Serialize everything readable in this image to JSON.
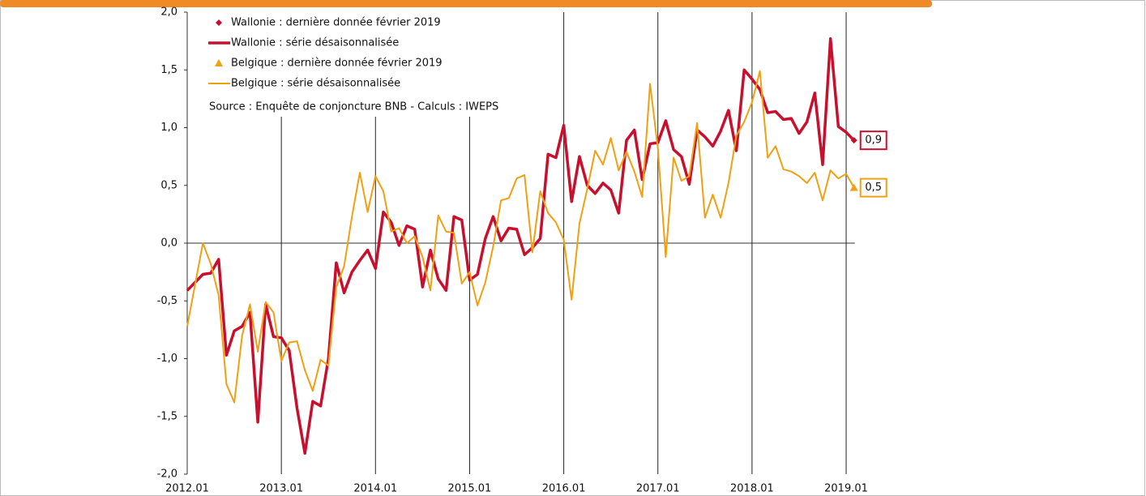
{
  "chart_data": {
    "type": "line",
    "categories": [
      "2012.01",
      null,
      null,
      null,
      null,
      null,
      null,
      null,
      null,
      null,
      null,
      null,
      "2013.01",
      null,
      null,
      null,
      null,
      null,
      null,
      null,
      null,
      null,
      null,
      null,
      "2014.01",
      null,
      null,
      null,
      null,
      null,
      null,
      null,
      null,
      null,
      null,
      null,
      "2015.01",
      null,
      null,
      null,
      null,
      null,
      null,
      null,
      null,
      null,
      null,
      null,
      "2016.01",
      null,
      null,
      null,
      null,
      null,
      null,
      null,
      null,
      null,
      null,
      null,
      "2017.01",
      null,
      null,
      null,
      null,
      null,
      null,
      null,
      null,
      null,
      null,
      null,
      "2018.01",
      null,
      null,
      null,
      null,
      null,
      null,
      null,
      null,
      null,
      null,
      null,
      "2019.01",
      null
    ],
    "series": [
      {
        "name": "Wallonie : dernière donnée février 2019",
        "color": "#c8102e",
        "marker": "diamond",
        "values": [
          null,
          null,
          null,
          null,
          null,
          null,
          null,
          null,
          null,
          null,
          null,
          null,
          null,
          null,
          null,
          null,
          null,
          null,
          null,
          null,
          null,
          null,
          null,
          null,
          null,
          null,
          null,
          null,
          null,
          null,
          null,
          null,
          null,
          null,
          null,
          null,
          null,
          null,
          null,
          null,
          null,
          null,
          null,
          null,
          null,
          null,
          null,
          null,
          null,
          null,
          null,
          null,
          null,
          null,
          null,
          null,
          null,
          null,
          null,
          null,
          null,
          null,
          null,
          null,
          null,
          null,
          null,
          null,
          null,
          null,
          null,
          null,
          null,
          null,
          null,
          null,
          null,
          null,
          null,
          null,
          null,
          null,
          null,
          null,
          null,
          0.89
        ],
        "value_labels": [
          null,
          null,
          null,
          null,
          null,
          null,
          null,
          null,
          null,
          null,
          null,
          null,
          null,
          null,
          null,
          null,
          null,
          null,
          null,
          null,
          null,
          null,
          null,
          null,
          null,
          null,
          null,
          null,
          null,
          null,
          null,
          null,
          null,
          null,
          null,
          null,
          null,
          null,
          null,
          null,
          null,
          null,
          null,
          null,
          null,
          null,
          null,
          null,
          null,
          null,
          null,
          null,
          null,
          null,
          null,
          null,
          null,
          null,
          null,
          null,
          null,
          null,
          null,
          null,
          null,
          null,
          null,
          null,
          null,
          null,
          null,
          null,
          null,
          null,
          null,
          null,
          null,
          null,
          null,
          null,
          null,
          null,
          null,
          null,
          null,
          "0,9"
        ]
      },
      {
        "name": "Wallonie : série désaisonnalisée",
        "color": "#c8102e",
        "line_width": 3.5,
        "values": [
          -0.41,
          -0.34,
          -0.27,
          -0.26,
          -0.14,
          -0.97,
          -0.76,
          -0.72,
          -0.6,
          -1.55,
          -0.53,
          -0.81,
          -0.82,
          -0.93,
          -1.43,
          -1.82,
          -1.37,
          -1.41,
          -1.0,
          -0.17,
          -0.43,
          -0.25,
          -0.15,
          -0.06,
          -0.22,
          0.27,
          0.18,
          -0.02,
          0.15,
          0.12,
          -0.38,
          -0.06,
          -0.31,
          -0.41,
          0.23,
          0.2,
          -0.32,
          -0.27,
          0.04,
          0.23,
          0.02,
          0.13,
          0.12,
          -0.1,
          -0.04,
          0.04,
          0.77,
          0.74,
          1.02,
          0.36,
          0.75,
          0.5,
          0.43,
          0.52,
          0.46,
          0.26,
          0.89,
          0.98,
          0.55,
          0.86,
          0.87,
          1.06,
          0.81,
          0.75,
          0.51,
          0.98,
          0.92,
          0.84,
          0.97,
          1.15,
          0.8,
          1.5,
          1.42,
          1.33,
          1.13,
          1.14,
          1.07,
          1.08,
          0.95,
          1.05,
          1.3,
          0.68,
          1.77,
          1.01,
          0.96,
          0.89
        ]
      },
      {
        "name": "Belgique : dernière donnée février 2019",
        "color": "#f0a013",
        "marker": "triangle",
        "values": [
          null,
          null,
          null,
          null,
          null,
          null,
          null,
          null,
          null,
          null,
          null,
          null,
          null,
          null,
          null,
          null,
          null,
          null,
          null,
          null,
          null,
          null,
          null,
          null,
          null,
          null,
          null,
          null,
          null,
          null,
          null,
          null,
          null,
          null,
          null,
          null,
          null,
          null,
          null,
          null,
          null,
          null,
          null,
          null,
          null,
          null,
          null,
          null,
          null,
          null,
          null,
          null,
          null,
          null,
          null,
          null,
          null,
          null,
          null,
          null,
          null,
          null,
          null,
          null,
          null,
          null,
          null,
          null,
          null,
          null,
          null,
          null,
          null,
          null,
          null,
          null,
          null,
          null,
          null,
          null,
          null,
          null,
          null,
          null,
          null,
          0.48
        ],
        "value_labels": [
          null,
          null,
          null,
          null,
          null,
          null,
          null,
          null,
          null,
          null,
          null,
          null,
          null,
          null,
          null,
          null,
          null,
          null,
          null,
          null,
          null,
          null,
          null,
          null,
          null,
          null,
          null,
          null,
          null,
          null,
          null,
          null,
          null,
          null,
          null,
          null,
          null,
          null,
          null,
          null,
          null,
          null,
          null,
          null,
          null,
          null,
          null,
          null,
          null,
          null,
          null,
          null,
          null,
          null,
          null,
          null,
          null,
          null,
          null,
          null,
          null,
          null,
          null,
          null,
          null,
          null,
          null,
          null,
          null,
          null,
          null,
          null,
          null,
          null,
          null,
          null,
          null,
          null,
          null,
          null,
          null,
          null,
          null,
          null,
          null,
          "0,5"
        ]
      },
      {
        "name": "Belgique : série désaisonnalisée",
        "color": "#f0a013",
        "line_width": 2,
        "values": [
          -0.72,
          -0.36,
          0.0,
          -0.18,
          -0.45,
          -1.22,
          -1.38,
          -0.8,
          -0.53,
          -0.94,
          -0.51,
          -0.6,
          -1.02,
          -0.86,
          -0.85,
          -1.1,
          -1.28,
          -1.01,
          -1.06,
          -0.38,
          -0.2,
          0.23,
          0.61,
          0.27,
          0.58,
          0.45,
          0.1,
          0.13,
          0.0,
          0.06,
          -0.12,
          -0.41,
          0.24,
          0.1,
          0.09,
          -0.35,
          -0.25,
          -0.54,
          -0.34,
          -0.03,
          0.37,
          0.39,
          0.56,
          0.59,
          -0.08,
          0.45,
          0.26,
          0.18,
          0.03,
          -0.49,
          0.17,
          0.47,
          0.8,
          0.68,
          0.91,
          0.63,
          0.79,
          0.62,
          0.4,
          1.38,
          0.82,
          -0.12,
          0.74,
          0.54,
          0.58,
          1.04,
          0.22,
          0.42,
          0.22,
          0.52,
          0.93,
          1.05,
          1.22,
          1.49,
          0.74,
          0.84,
          0.64,
          0.62,
          0.58,
          0.52,
          0.61,
          0.37,
          0.63,
          0.56,
          0.6,
          0.48
        ]
      }
    ],
    "annotation": "Source : Enquête de conjoncture BNB - Calculs : IWEPS",
    "ylim": [
      -2,
      2
    ],
    "yticks": [
      {
        "value": -2,
        "label": "-2,0"
      },
      {
        "value": -1.5,
        "label": "-1,5"
      },
      {
        "value": -1,
        "label": "-1,0"
      },
      {
        "value": -0.5,
        "label": "-0,5"
      },
      {
        "value": 0,
        "label": "0,0"
      },
      {
        "value": 0.5,
        "label": "0,5"
      },
      {
        "value": 1,
        "label": "1,0"
      },
      {
        "value": 1.5,
        "label": "1,5"
      },
      {
        "value": 2,
        "label": "2,0"
      }
    ],
    "grid": true
  }
}
